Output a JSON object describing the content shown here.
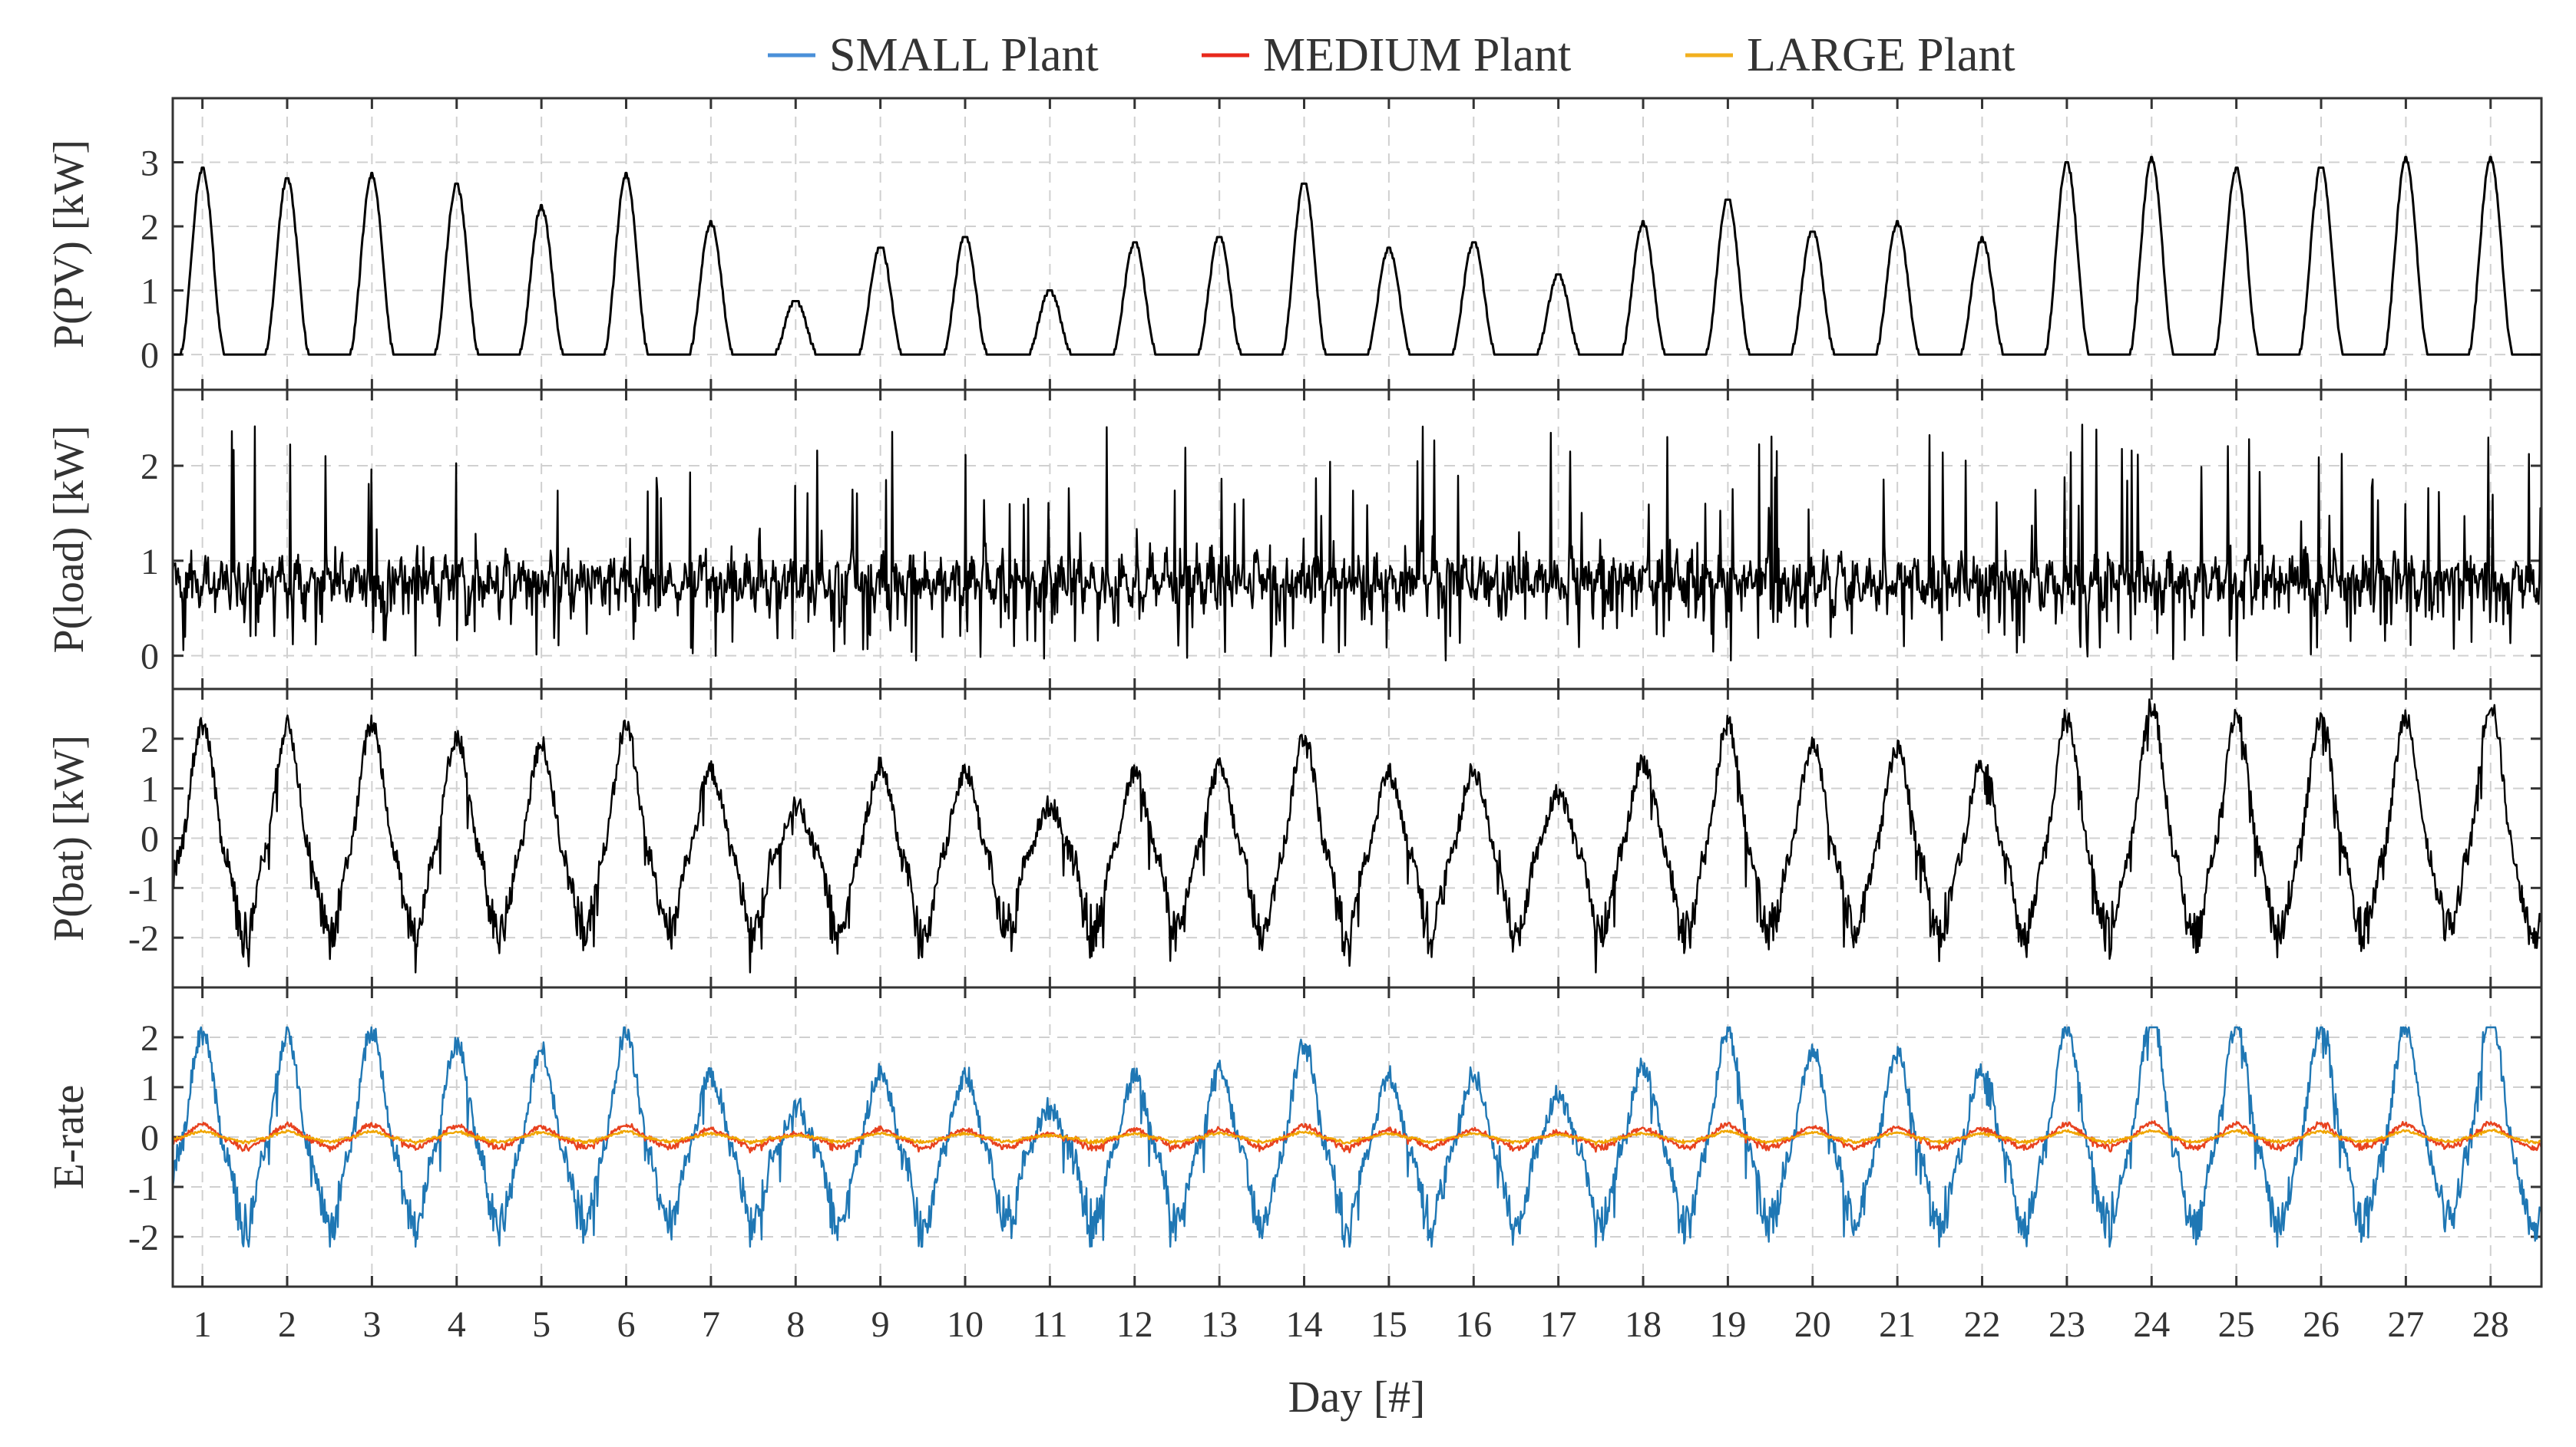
{
  "chart_data": [
    {
      "id": "pv",
      "type": "line",
      "ylabel": "P(PV) [kW]",
      "ylim": [
        -0.55,
        4.0
      ],
      "yticks": [
        0,
        1,
        2,
        3
      ],
      "ytick_labels": [
        "0",
        "1",
        "2",
        "3"
      ],
      "days": [
        1,
        2,
        3,
        4,
        5,
        6,
        7,
        8,
        9,
        10,
        11,
        12,
        13,
        14,
        15,
        16,
        17,
        18,
        19,
        20,
        21,
        22,
        23,
        24,
        25,
        26,
        27,
        28
      ],
      "daily_peak_kW": [
        2.9,
        2.75,
        2.8,
        2.65,
        2.3,
        2.8,
        2.05,
        0.85,
        1.7,
        1.85,
        1.0,
        1.75,
        1.85,
        2.7,
        1.65,
        1.75,
        1.25,
        2.05,
        2.45,
        1.95,
        2.05,
        1.8,
        3.0,
        3.05,
        2.9,
        2.95,
        3.05,
        3.05
      ],
      "series": [
        {
          "name": "P(PV)",
          "color": "#000000"
        }
      ]
    },
    {
      "id": "load",
      "type": "line",
      "ylabel": "P(load) [kW]",
      "ylim": [
        -0.35,
        2.8
      ],
      "yticks": [
        0,
        1,
        2
      ],
      "ytick_labels": [
        "0",
        "1",
        "2"
      ],
      "baseline_kW": 0.45,
      "typical_kW": 0.8,
      "peak_kW": 2.35,
      "series": [
        {
          "name": "P(load)",
          "color": "#000000"
        }
      ]
    },
    {
      "id": "bat",
      "type": "line",
      "ylabel": "P(bat) [kW]",
      "ylim": [
        -3.0,
        3.0
      ],
      "yticks": [
        -2,
        -1,
        0,
        1,
        2
      ],
      "ytick_labels": [
        "-2",
        "-1",
        "0",
        "1",
        "2"
      ],
      "daily_peak_kW": [
        2.3,
        2.25,
        2.3,
        2.05,
        1.85,
        2.25,
        1.35,
        0.65,
        1.45,
        1.35,
        0.65,
        1.3,
        1.4,
        2.05,
        1.3,
        1.35,
        0.9,
        1.55,
        2.3,
        1.85,
        1.75,
        1.55,
        2.45,
        2.65,
        2.5,
        2.45,
        2.45,
        2.7
      ],
      "night_min_kW": -2.3,
      "series": [
        {
          "name": "P(bat)",
          "color": "#000000"
        }
      ]
    },
    {
      "id": "erate",
      "type": "line",
      "ylabel": "E-rate",
      "ylim": [
        -3.0,
        3.0
      ],
      "yticks": [
        -2,
        -1,
        0,
        1,
        2
      ],
      "ytick_labels": [
        "-2",
        "-1",
        "0",
        "1",
        "2"
      ],
      "medium_scale": 0.11,
      "large_scale": 0.05,
      "series": [
        {
          "name": "SMALL Plant",
          "color": "#1f77b4"
        },
        {
          "name": "MEDIUM Plant",
          "color": "#e8421f"
        },
        {
          "name": "LARGE Plant",
          "color": "#f0a500"
        }
      ]
    }
  ],
  "xaxis": {
    "label": "Day [#]",
    "xlim": [
      0.65,
      28.6
    ],
    "ticks": [
      1,
      2,
      3,
      4,
      5,
      6,
      7,
      8,
      9,
      10,
      11,
      12,
      13,
      14,
      15,
      16,
      17,
      18,
      19,
      20,
      21,
      22,
      23,
      24,
      25,
      26,
      27,
      28
    ],
    "tick_labels": [
      "1",
      "2",
      "3",
      "4",
      "5",
      "6",
      "7",
      "8",
      "9",
      "10",
      "11",
      "12",
      "13",
      "14",
      "15",
      "16",
      "17",
      "18",
      "19",
      "20",
      "21",
      "22",
      "23",
      "24",
      "25",
      "26",
      "27",
      "28"
    ]
  },
  "legend": {
    "placement": "top-center",
    "entries": [
      {
        "label": "SMALL Plant",
        "color": "#4a90d9"
      },
      {
        "label": "MEDIUM Plant",
        "color": "#e8291c"
      },
      {
        "label": "LARGE Plant",
        "color": "#f2b01e"
      }
    ]
  }
}
